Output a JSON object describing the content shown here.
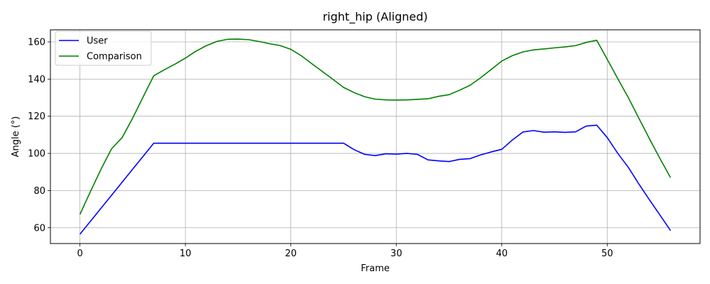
{
  "chart_data": {
    "type": "line",
    "title": "right_hip (Aligned)",
    "xlabel": "Frame",
    "ylabel": "Angle (°)",
    "xlim": [
      -2.8,
      58.8
    ],
    "ylim": [
      51.5,
      166.5
    ],
    "xticks": [
      0,
      10,
      20,
      30,
      40,
      50
    ],
    "yticks": [
      60,
      80,
      100,
      120,
      140,
      160
    ],
    "grid": true,
    "legend_position": "top-left",
    "series": [
      {
        "name": "User",
        "color": "#0000ff",
        "x": [
          0,
          1,
          2,
          3,
          4,
          5,
          6,
          7,
          8,
          9,
          10,
          11,
          12,
          13,
          14,
          15,
          16,
          17,
          18,
          19,
          20,
          21,
          22,
          23,
          24,
          25,
          26,
          27,
          28,
          29,
          30,
          31,
          32,
          33,
          34,
          35,
          36,
          37,
          38,
          39,
          40,
          41,
          42,
          43,
          44,
          45,
          46,
          47,
          48,
          49,
          50,
          51,
          52,
          53,
          54,
          55,
          56
        ],
        "y": [
          56.5,
          63.5,
          70.5,
          77.5,
          84.5,
          91.5,
          98.5,
          105.5,
          105.5,
          105.5,
          105.5,
          105.5,
          105.5,
          105.5,
          105.5,
          105.5,
          105.5,
          105.5,
          105.5,
          105.5,
          105.5,
          105.5,
          105.5,
          105.5,
          105.5,
          105.5,
          102.0,
          99.5,
          98.8,
          99.8,
          99.6,
          100.0,
          99.5,
          96.5,
          96.0,
          95.6,
          96.8,
          97.2,
          99.2,
          100.8,
          102.2,
          107.2,
          111.5,
          112.3,
          111.4,
          111.6,
          111.3,
          111.6,
          114.7,
          115.2,
          108.5,
          100.0,
          92.5,
          83.5,
          75.0,
          66.8,
          58.5
        ]
      },
      {
        "name": "Comparison",
        "color": "#008000",
        "x": [
          0,
          1,
          2,
          3,
          4,
          5,
          6,
          7,
          8,
          9,
          10,
          11,
          12,
          13,
          14,
          15,
          16,
          17,
          18,
          19,
          20,
          21,
          22,
          23,
          24,
          25,
          26,
          27,
          28,
          29,
          30,
          31,
          32,
          33,
          34,
          35,
          36,
          37,
          38,
          39,
          40,
          41,
          42,
          43,
          44,
          45,
          46,
          47,
          48,
          49,
          50,
          51,
          52,
          53,
          54,
          55,
          56
        ],
        "y": [
          67.2,
          79.5,
          91.5,
          102.5,
          108.5,
          119.0,
          130.5,
          141.8,
          145.0,
          148.0,
          151.3,
          155.0,
          158.0,
          160.3,
          161.4,
          161.5,
          161.2,
          160.2,
          159.0,
          158.0,
          156.0,
          152.5,
          148.2,
          144.0,
          139.8,
          135.5,
          132.7,
          130.5,
          129.2,
          128.8,
          128.7,
          128.8,
          129.1,
          129.4,
          130.7,
          131.6,
          134.0,
          136.7,
          140.7,
          145.2,
          149.7,
          152.6,
          154.6,
          155.7,
          156.2,
          156.8,
          157.3,
          158.0,
          159.7,
          160.9,
          150.6,
          140.2,
          130.0,
          118.9,
          107.9,
          97.2,
          87.0
        ]
      }
    ]
  }
}
